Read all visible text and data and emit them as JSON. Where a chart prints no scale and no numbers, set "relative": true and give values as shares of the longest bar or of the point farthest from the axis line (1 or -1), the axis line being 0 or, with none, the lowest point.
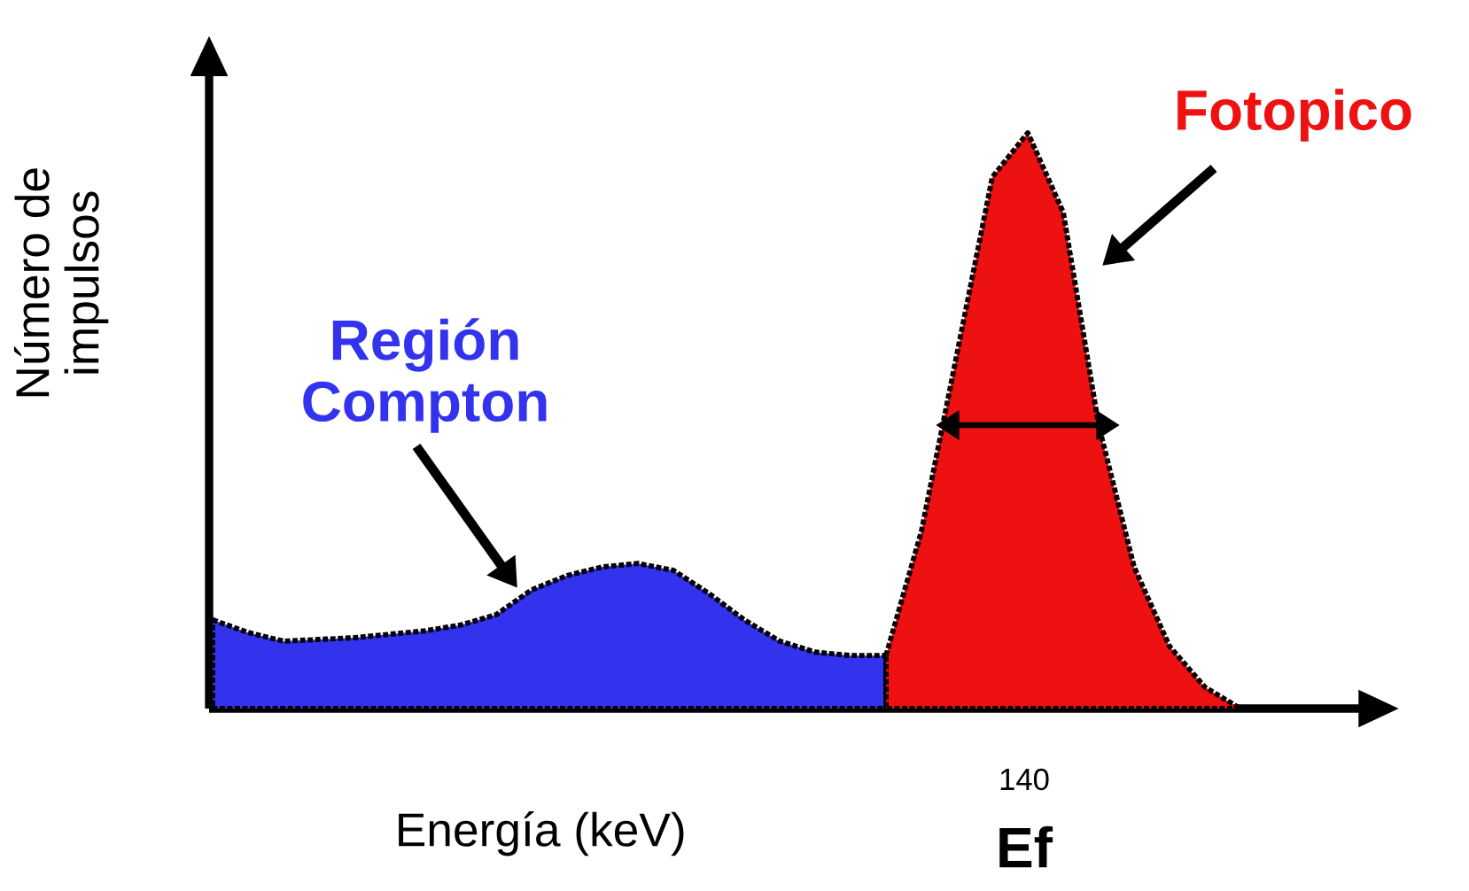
{
  "chart_data": {
    "type": "area",
    "relative": true,
    "xlabel": "Energía (keV)",
    "ylabel": "Número de impulsos",
    "line_style": "dotted",
    "categories": [
      null,
      null,
      null,
      null,
      null,
      null,
      null,
      null,
      null,
      null,
      null,
      null,
      null,
      null,
      null,
      null,
      null,
      null,
      null,
      null,
      null,
      null,
      null,
      null,
      null,
      null,
      null,
      null,
      null,
      null
    ],
    "series": [
      {
        "name": "Región Compton",
        "color": "#3333ee",
        "values": [
          0.154,
          0.132,
          0.117,
          0.12,
          0.123,
          0.129,
          0.135,
          0.145,
          0.163,
          0.206,
          0.231,
          0.246,
          0.252,
          0.24,
          0.2,
          0.154,
          0.117,
          0.098,
          0.092,
          0.092,
          null,
          null,
          null,
          null,
          null,
          null,
          null,
          null,
          null,
          null
        ]
      },
      {
        "name": "Fotopico",
        "color": "#ee1111",
        "values": [
          null,
          null,
          null,
          null,
          null,
          null,
          null,
          null,
          null,
          null,
          null,
          null,
          null,
          null,
          null,
          null,
          null,
          null,
          null,
          0.092,
          0.308,
          0.615,
          0.923,
          1,
          0.862,
          0.492,
          0.246,
          0.108,
          0.037,
          0
        ]
      }
    ],
    "annotations": [
      "140",
      "Ef"
    ]
  }
}
